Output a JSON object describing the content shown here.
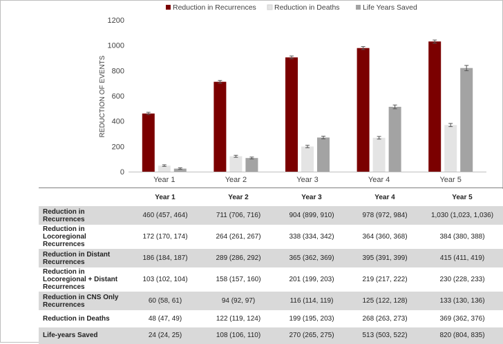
{
  "chart_data": {
    "type": "bar",
    "categories": [
      "Year 1",
      "Year 2",
      "Year 3",
      "Year 4",
      "Year 5"
    ],
    "ylabel": "REDUCTION OF EVENTS",
    "ylim": [
      0,
      1200
    ],
    "yticks": [
      0,
      200,
      400,
      600,
      800,
      1000,
      1200
    ],
    "legend_position": "top-center",
    "series": [
      {
        "name": "Reduction in Recurrences",
        "color": "#7b0000",
        "values": [
          460,
          711,
          904,
          978,
          1030
        ],
        "err_low": [
          457,
          706,
          899,
          972,
          1023
        ],
        "err_high": [
          464,
          716,
          910,
          984,
          1036
        ]
      },
      {
        "name": "Reduction in Deaths",
        "color": "#e4e4e4",
        "values": [
          48,
          122,
          199,
          268,
          369
        ],
        "err_low": [
          47,
          119,
          195,
          263,
          362
        ],
        "err_high": [
          49,
          124,
          203,
          273,
          376
        ]
      },
      {
        "name": "Life Years Saved",
        "color": "#a3a3a3",
        "values": [
          24,
          108,
          270,
          513,
          820
        ],
        "err_low": [
          24,
          106,
          265,
          503,
          804
        ],
        "err_high": [
          25,
          110,
          275,
          522,
          835
        ]
      }
    ]
  },
  "table": {
    "columns": [
      "Year 1",
      "Year 2",
      "Year 3",
      "Year 4",
      "Year 5"
    ],
    "rows": [
      {
        "label": "Reduction in Recurrences",
        "cells": [
          "460 (457, 464)",
          "711 (706, 716)",
          "904 (899, 910)",
          "978 (972, 984)",
          "1,030 (1,023, 1,036)"
        ]
      },
      {
        "label": "Reduction in Locoregional Recurrences",
        "cells": [
          "172 (170, 174)",
          "264 (261, 267)",
          "338 (334, 342)",
          "364 (360, 368)",
          "384 (380, 388)"
        ]
      },
      {
        "label": "Reduction in Distant Recurrences",
        "cells": [
          "186 (184, 187)",
          "289 (286, 292)",
          "365 (362, 369)",
          "395 (391, 399)",
          "415 (411, 419)"
        ]
      },
      {
        "label": "Reduction in Locoregional + Distant Recurrences",
        "cells": [
          "103 (102, 104)",
          "158 (157, 160)",
          "201 (199, 203)",
          "219 (217, 222)",
          "230 (228, 233)"
        ]
      },
      {
        "label": "Reduction in CNS Only Recurrences",
        "cells": [
          "60 (58, 61)",
          "94 (92, 97)",
          "116 (114, 119)",
          "125 (122, 128)",
          "133 (130, 136)"
        ]
      },
      {
        "label": "Reduction in Deaths",
        "cells": [
          "48 (47, 49)",
          "122 (119, 124)",
          "199 (195, 203)",
          "268 (263, 273)",
          "369 (362, 376)"
        ]
      },
      {
        "label": "Life-years Saved",
        "cells": [
          "24 (24, 25)",
          "108 (106, 110)",
          "270 (265, 275)",
          "513 (503, 522)",
          "820 (804, 835)"
        ]
      }
    ]
  }
}
